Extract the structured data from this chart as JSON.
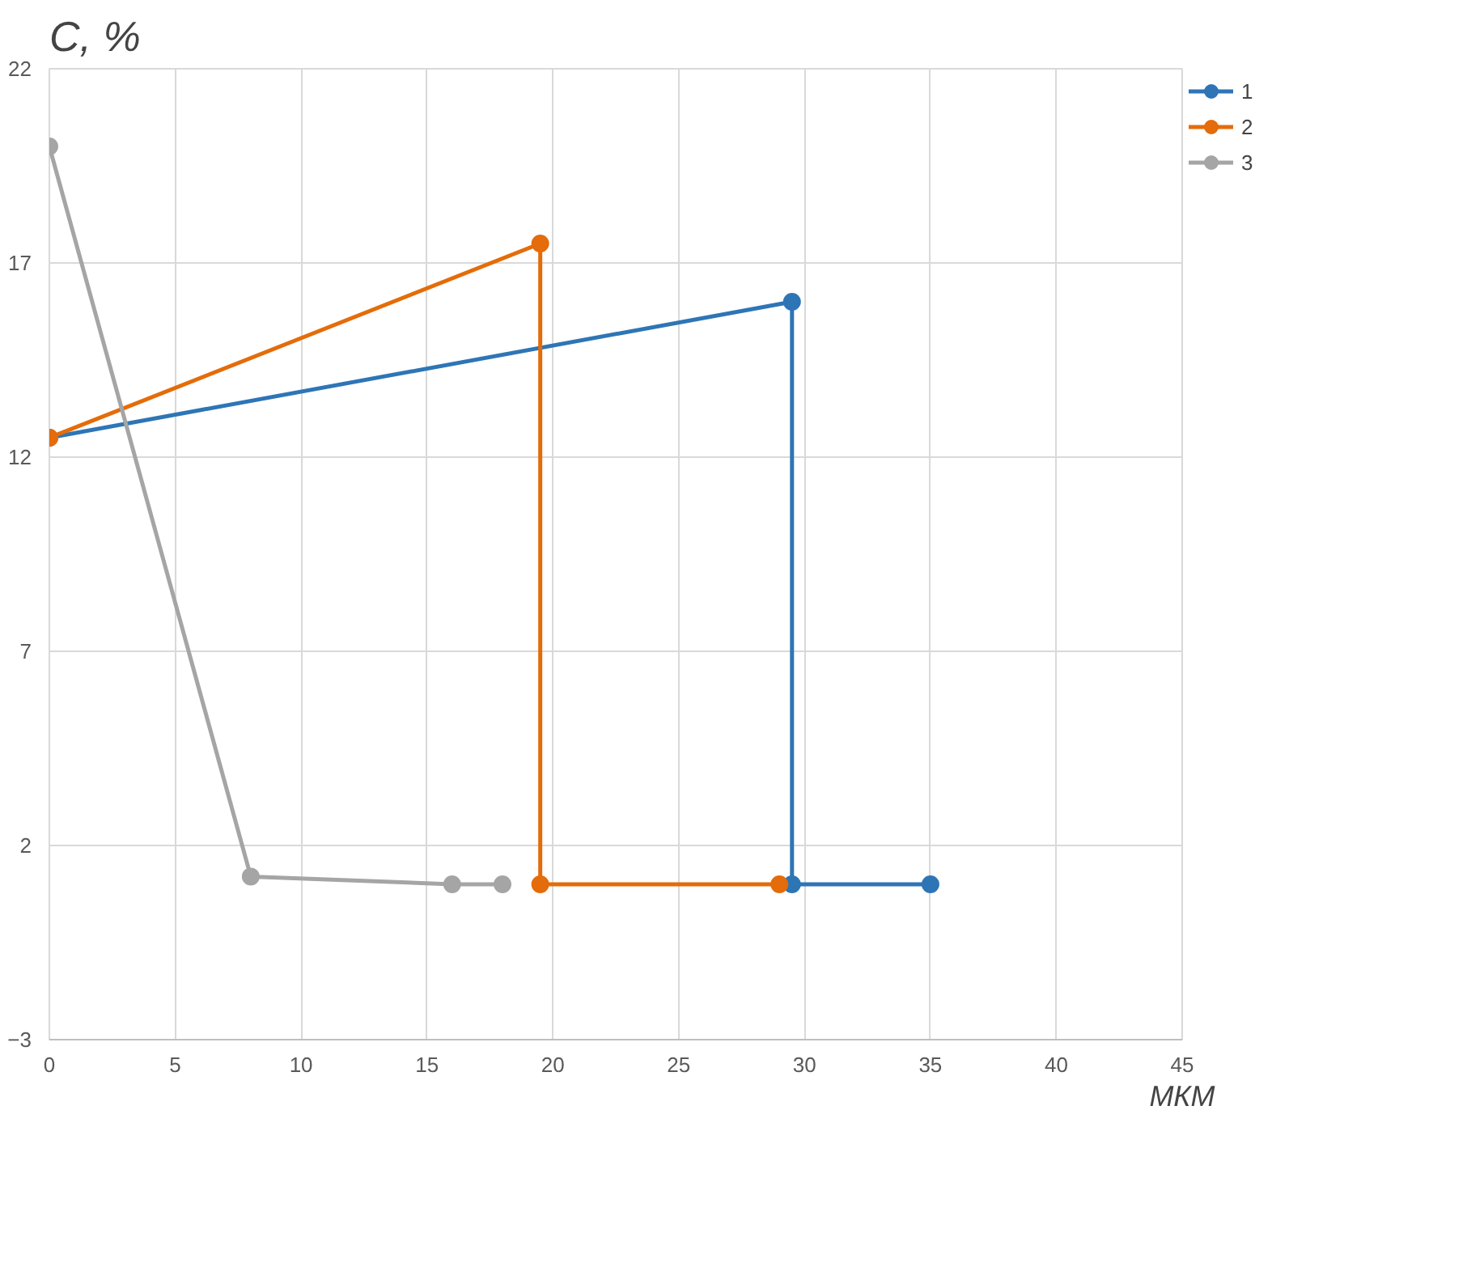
{
  "chart_data": {
    "type": "line",
    "ylabel": "C, %",
    "xlabel": "МКМ",
    "xlim": [
      0,
      45
    ],
    "ylim": [
      -3,
      22
    ],
    "xticks": [
      0,
      5,
      10,
      15,
      20,
      25,
      30,
      35,
      40,
      45
    ],
    "yticks": [
      -3,
      2,
      7,
      12,
      17,
      22
    ],
    "grid": true,
    "legend": "top right",
    "marker": "circle",
    "series": [
      {
        "name": "1",
        "color": "#2e75b6",
        "x": [
          0,
          29.5,
          29.5,
          35
        ],
        "values": [
          12.5,
          16,
          1,
          1
        ]
      },
      {
        "name": "2",
        "color": "#e46c0a",
        "x": [
          0,
          19.5,
          19.5,
          29
        ],
        "values": [
          12.5,
          17.5,
          1,
          1
        ]
      },
      {
        "name": "3",
        "color": "#a5a5a5",
        "x": [
          0,
          8,
          16,
          18
        ],
        "values": [
          20,
          1.2,
          1,
          1
        ]
      }
    ]
  }
}
